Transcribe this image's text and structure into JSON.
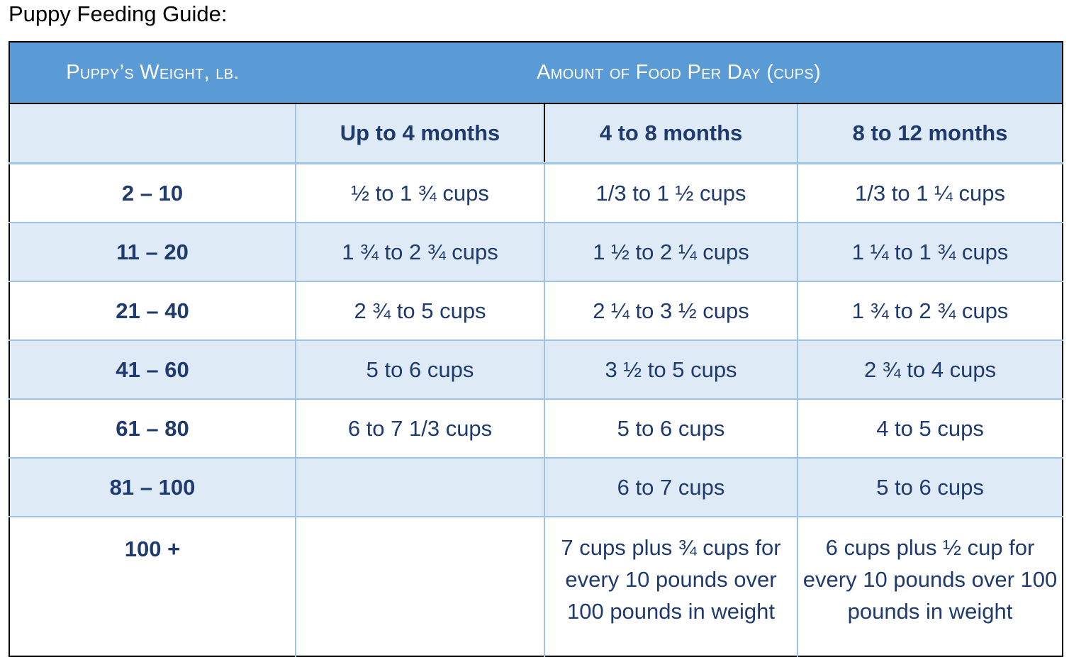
{
  "title": "Puppy Feeding Guide:",
  "table": {
    "header_weight": "Puppy’s Weight, lb.",
    "header_amount": "Amount of Food Per Day (cups)",
    "age_columns": [
      "Up to 4 months",
      "4 to 8 months",
      "8 to 12 months"
    ],
    "rows": [
      {
        "weight": "2 – 10",
        "values": [
          "½ to 1 ¾ cups",
          "1/3 to 1 ½ cups",
          "1/3 to 1 ¼ cups"
        ]
      },
      {
        "weight": "11 – 20",
        "values": [
          "1 ¾ to 2 ¾ cups",
          "1 ½ to 2 ¼ cups",
          "1 ¼ to 1 ¾ cups"
        ]
      },
      {
        "weight": "21 – 40",
        "values": [
          "2 ¾ to 5 cups",
          "2 ¼ to 3 ½ cups",
          "1 ¾ to 2 ¾ cups"
        ]
      },
      {
        "weight": "41 – 60",
        "values": [
          "5 to 6 cups",
          "3 ½ to 5 cups",
          "2 ¾ to 4 cups"
        ]
      },
      {
        "weight": "61 – 80",
        "values": [
          "6 to 7 1/3 cups",
          "5 to 6 cups",
          "4 to 5 cups"
        ]
      },
      {
        "weight": "81 – 100",
        "values": [
          "",
          "6 to 7 cups",
          "5 to 6 cups"
        ]
      },
      {
        "weight": "100 +",
        "values": [
          "",
          "7 cups plus ¾ cups for every 10 pounds over 100 pounds in weight",
          "6 cups plus ½ cup for every 10 pounds over 100 pounds in weight"
        ]
      }
    ]
  },
  "colors": {
    "header_bg": "#5b9bd5",
    "alt_row_bg": "#deeaf6",
    "text": "#1f3a6e",
    "grid": "#9dc3e6"
  }
}
